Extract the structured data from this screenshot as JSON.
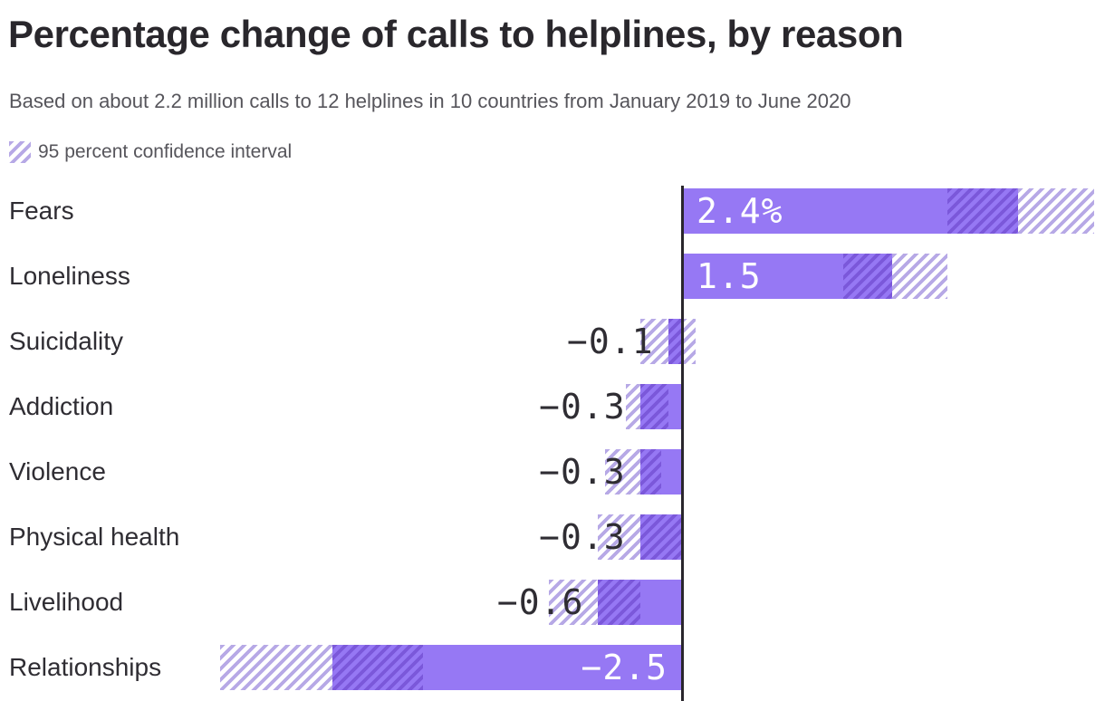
{
  "header": {
    "title": "Percentage change of calls to helplines, by reason",
    "subtitle": "Based on about 2.2 million calls to 12 helplines in 10 countries from January 2019 to June 2020"
  },
  "legend": {
    "swatch_icon": "diagonal-hatch-swatch",
    "label": "95 percent confidence interval"
  },
  "colors": {
    "bar": "#9678f4",
    "dark_stripe": "#7b58da",
    "light_stripe": "#b7a9e6",
    "axis": "#29262c",
    "title_text": "#29272c",
    "muted_text": "#56555b",
    "category_text": "#2f2d33",
    "value_inside_text": "#ffffff"
  },
  "chart_data": {
    "type": "bar",
    "orientation": "horizontal",
    "title": "Percentage change of calls to helplines, by reason",
    "subtitle": "Based on about 2.2 million calls to 12 helplines in 10 countries from January 2019 to June 2020",
    "unit": "percent",
    "categories": [
      "Fears",
      "Loneliness",
      "Suicidality",
      "Addiction",
      "Violence",
      "Physical health",
      "Livelihood",
      "Relationships"
    ],
    "series": [
      {
        "name": "Percentage change of calls",
        "values": [
          2.4,
          1.5,
          -0.1,
          -0.3,
          -0.3,
          -0.3,
          -0.6,
          -2.5
        ]
      }
    ],
    "value_labels": [
      "2.4%",
      "1.5",
      "−0.1",
      "−0.3",
      "−0.3",
      "−0.3",
      "−0.6",
      "−2.5"
    ],
    "confidence_intervals": [
      {
        "lower": 1.9,
        "upper": 2.95
      },
      {
        "lower": 1.15,
        "upper": 1.9
      },
      {
        "lower": -0.3,
        "upper": 0.1
      },
      {
        "lower": -0.4,
        "upper": -0.1
      },
      {
        "lower": -0.55,
        "upper": -0.15
      },
      {
        "lower": -0.6,
        "upper": 0.0
      },
      {
        "lower": -0.95,
        "upper": -0.3
      },
      {
        "lower": -3.3,
        "upper": -1.85
      }
    ],
    "ci_legend": "95 percent confidence interval",
    "xlim": [
      -3.3,
      3.0
    ],
    "zero_baseline": true,
    "grid": false,
    "legend_position": "top-left",
    "value_label_style": "monospace, white inside wide bars, dark outside narrow bars"
  }
}
